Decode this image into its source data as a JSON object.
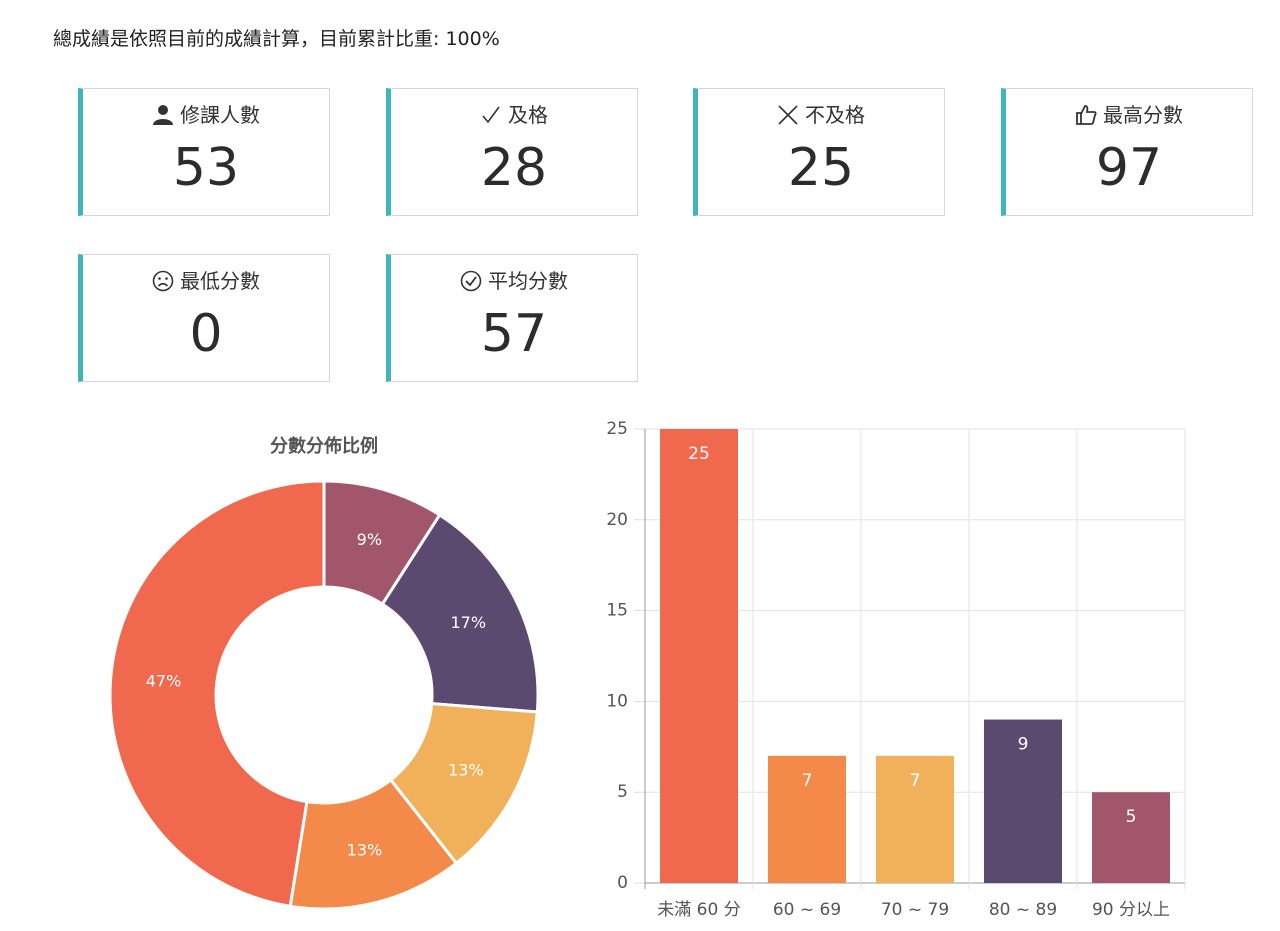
{
  "header": {
    "text": "總成績是依照目前的成績計算，目前累計比重: 100%"
  },
  "stats": [
    {
      "label": "修課人數",
      "value": 53
    },
    {
      "label": "及格",
      "value": 28
    },
    {
      "label": "不及格",
      "value": 25
    },
    {
      "label": "最高分數",
      "value": 97
    },
    {
      "label": "最低分數",
      "value": 0
    },
    {
      "label": "平均分數",
      "value": 57
    }
  ],
  "chart_data": [
    {
      "type": "pie",
      "title": "分數分佈比例",
      "values": [
        9,
        17,
        13,
        13,
        47
      ],
      "value_labels": [
        "9%",
        "17%",
        "13%",
        "13%",
        "47%"
      ],
      "colors": [
        "#a1566b",
        "#5c4970",
        "#f1b15a",
        "#f48a49",
        "#f0694e"
      ]
    },
    {
      "type": "bar",
      "categories": [
        "未滿 60 分",
        "60 ~ 69",
        "70 ~ 79",
        "80 ~ 89",
        "90 分以上"
      ],
      "values": [
        25,
        7,
        7,
        9,
        5
      ],
      "colors": [
        "#f0694e",
        "#f48a49",
        "#f1b15a",
        "#5c4970",
        "#a1566b"
      ],
      "ylim": [
        0,
        25
      ],
      "yticks": [
        0,
        5,
        10,
        15,
        20,
        25
      ],
      "grid": true
    }
  ]
}
